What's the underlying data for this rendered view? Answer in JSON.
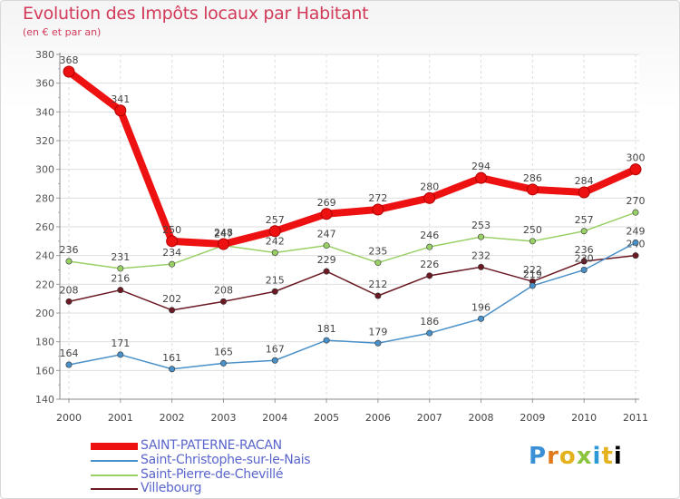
{
  "chart_data": {
    "type": "line",
    "title": "Evolution des Impôts locaux par Habitant",
    "subtitle": "(en € et par an)",
    "x": [
      "2000",
      "2001",
      "2002",
      "2003",
      "2004",
      "2005",
      "2006",
      "2007",
      "2008",
      "2009",
      "2010",
      "2011"
    ],
    "ylim": [
      140,
      380
    ],
    "yticks": [
      "140",
      "160",
      "180",
      "200",
      "220",
      "240",
      "260",
      "280",
      "300",
      "320",
      "340",
      "360",
      "380"
    ],
    "grid": true,
    "series": [
      {
        "name": "Villebourg",
        "color": "#6b1a24",
        "values": [
          208,
          216,
          202,
          208,
          215,
          229,
          212,
          226,
          232,
          222,
          236,
          240
        ],
        "labels": [
          "208",
          "216",
          "202",
          "208",
          "215",
          "229",
          "212",
          "226",
          "232",
          "222",
          "236",
          "240"
        ]
      },
      {
        "name": "Saint-Christophe-sur-le-Nais",
        "color": "#4a90c8",
        "values": [
          164,
          171,
          161,
          165,
          167,
          181,
          179,
          186,
          196,
          219,
          230,
          249
        ],
        "labels": [
          "164",
          "171",
          "161",
          "165",
          "167",
          "181",
          "179",
          "186",
          "196",
          "219",
          "230",
          "249"
        ]
      },
      {
        "name": "Saint-Pierre-de-Chevillé",
        "color": "#99d066",
        "values": [
          236,
          231,
          234,
          247,
          242,
          247,
          235,
          246,
          253,
          250,
          257,
          270
        ],
        "labels": [
          "236",
          "231",
          "234",
          "247",
          "242",
          "247",
          "235",
          "246",
          "253",
          "250",
          "257",
          "270"
        ]
      },
      {
        "name": "SAINT-PATERNE-RACAN",
        "color": "#ee1111",
        "values": [
          368,
          341,
          250,
          248,
          257,
          269,
          272,
          280,
          294,
          286,
          284,
          300
        ],
        "labels": [
          "368",
          "341",
          "250",
          "248",
          "257",
          "269",
          "272",
          "280",
          "294",
          "286",
          "284",
          "300"
        ]
      }
    ],
    "legend": [
      {
        "name": "SAINT-PATERNE-RACAN",
        "color": "#ee1111"
      },
      {
        "name": "Saint-Christophe-sur-le-Nais",
        "color": "#4a90c8"
      },
      {
        "name": "Saint-Pierre-de-Chevillé",
        "color": "#99d066"
      },
      {
        "name": "Villebourg",
        "color": "#6b1a24"
      }
    ],
    "legend_position": "bottom-left"
  },
  "logo": {
    "letters": [
      "P",
      "r",
      "o",
      "x",
      "i",
      "t",
      "i"
    ]
  }
}
